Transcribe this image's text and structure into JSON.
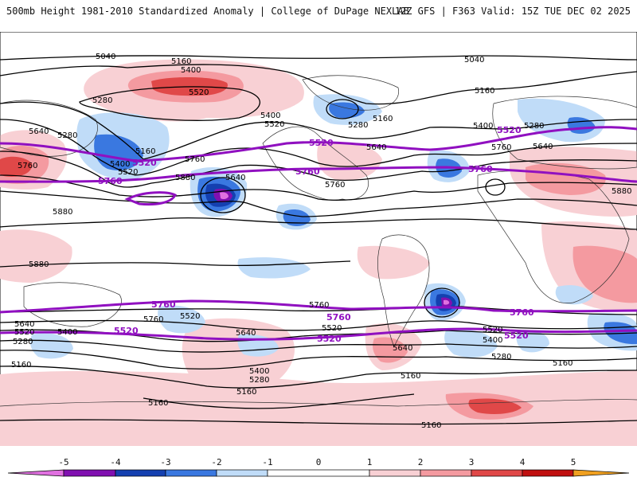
{
  "header": {
    "left_title": "500mb Height 1981-2010 Standardized Anomaly | College of DuPage NEXLAB",
    "right_title": "12Z GFS | F363 Valid: 15Z TUE DEC 02 2025"
  },
  "colors": {
    "neg5": "#e070e0",
    "neg4": "#8010b0",
    "neg3": "#1440b0",
    "neg2": "#3a78e0",
    "neg1": "#c0dcf8",
    "pos1": "#f8d0d4",
    "pos2": "#f49aa0",
    "pos3": "#e04848",
    "pos4": "#c01010",
    "pos5": "#f0a020",
    "reference_contour": "#9010c0",
    "height_contour": "#000000",
    "coastline": "#333333"
  },
  "colorbar": {
    "ticks": [
      "-5",
      "-4",
      "-3",
      "-2",
      "-1",
      "0",
      "1",
      "2",
      "3",
      "4",
      "5"
    ]
  },
  "contour_labels": {
    "c5040a": "5040",
    "c5040b": "5040",
    "c5160a": "5160",
    "c5160b": "5160",
    "c5160c": "5160",
    "c5160d": "5160",
    "c5160e": "5160",
    "c5160f": "5160",
    "c5160g": "5160",
    "c5160h": "5160",
    "c5160i": "5160",
    "c5160j": "5160",
    "c5280a": "5280",
    "c5280b": "5280",
    "c5280c": "5280",
    "c5280d": "5280",
    "c5280e": "5280",
    "c5280f": "5280",
    "c5280g": "5280",
    "c5400a": "5400",
    "c5400b": "5400",
    "c5400c": "5400",
    "c5400d": "5400",
    "c5400e": "5400",
    "c5400f": "5400",
    "c5400g": "5400",
    "c5520a": "5520",
    "c5520b": "5520",
    "c5520c": "5520",
    "c5520d": "5520",
    "c5520e": "5520",
    "c5520f": "5520",
    "c5520g": "5520",
    "c5640a": "5640",
    "c5640b": "5640",
    "c5640c": "5640",
    "c5640d": "5640",
    "c5640e": "5640",
    "c5640f": "5640",
    "c5640g": "5640",
    "c5760a": "5760",
    "c5760b": "5760",
    "c5760c": "5760",
    "c5760d": "5760",
    "c5760e": "5760",
    "c5760f": "5760",
    "c5880a": "5880",
    "c5880b": "5880",
    "c5880c": "5880",
    "c5880d": "5880",
    "p5520a": "5520",
    "p5520b": "5520",
    "p5520c": "5520",
    "p5520d": "5520",
    "p5520e": "5520",
    "p5520f": "5520",
    "p5760a": "5760",
    "p5760b": "5760",
    "p5760c": "5760",
    "p5760d": "5760",
    "p5760e": "5760",
    "p5760f": "5760"
  }
}
